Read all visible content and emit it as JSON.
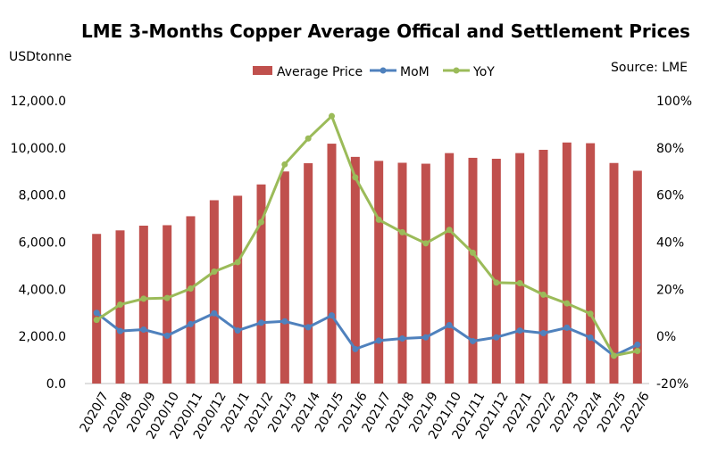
{
  "chart_data": {
    "type": "bar+line",
    "title": "LME 3-Months Copper  Average Offical and Settlement Prices",
    "ylabel_left": "USDtonne",
    "source": "Source: LME",
    "categories": [
      "2020/7",
      "2020/8",
      "2020/9",
      "2020/10",
      "2020/11",
      "2020/12",
      "2021/1",
      "2021/2",
      "2021/3",
      "2021/4",
      "2021/5",
      "2021/6",
      "2021/7",
      "2021/8",
      "2021/9",
      "2021/10",
      "2021/11",
      "2021/12",
      "2022/1",
      "2022/2",
      "2022/3",
      "2022/4",
      "2022/5",
      "2022/6"
    ],
    "left_axis": {
      "ylim": [
        0,
        12000
      ],
      "ticks": [
        "0.0",
        "2,000.0",
        "4,000.0",
        "6,000.0",
        "8,000.0",
        "10,000.0",
        "12,000.0"
      ],
      "tick_values": [
        0,
        2000,
        4000,
        6000,
        8000,
        10000,
        12000
      ]
    },
    "right_axis": {
      "ylim": [
        -20,
        100
      ],
      "ticks": [
        "-20%",
        "0%",
        "20%",
        "40%",
        "60%",
        "80%",
        "100%"
      ],
      "tick_values": [
        -20,
        0,
        20,
        40,
        60,
        80,
        100
      ]
    },
    "series": [
      {
        "name": "Average Price",
        "kind": "bar",
        "axis": "left",
        "color": "#C0504D",
        "values": [
          6350,
          6500,
          6700,
          6720,
          7100,
          7780,
          7970,
          8450,
          9000,
          9350,
          10180,
          9620,
          9450,
          9370,
          9330,
          9780,
          9580,
          9540,
          9780,
          9920,
          10230,
          10200,
          9360,
          9030
        ]
      },
      {
        "name": "MoM",
        "kind": "line",
        "axis": "right",
        "color": "#4F81BD",
        "values": [
          10,
          2.3,
          2.9,
          0.3,
          5.2,
          9.8,
          2.5,
          5.8,
          6.4,
          3.9,
          8.9,
          -5.4,
          -1.8,
          -0.9,
          -0.4,
          4.8,
          -2.0,
          -0.4,
          2.5,
          1.4,
          3.7,
          -0.5,
          -8.2,
          -3.5
        ]
      },
      {
        "name": "YoY",
        "kind": "line",
        "axis": "right",
        "color": "#9BBB59",
        "values": [
          7,
          13.5,
          16,
          16.3,
          20.3,
          27.5,
          31.5,
          48.5,
          73,
          84,
          93.5,
          67.5,
          49.5,
          44.2,
          39.5,
          45.2,
          35.5,
          22.8,
          22.6,
          17.7,
          14,
          9.6,
          -8.2,
          -6.2
        ]
      }
    ]
  }
}
